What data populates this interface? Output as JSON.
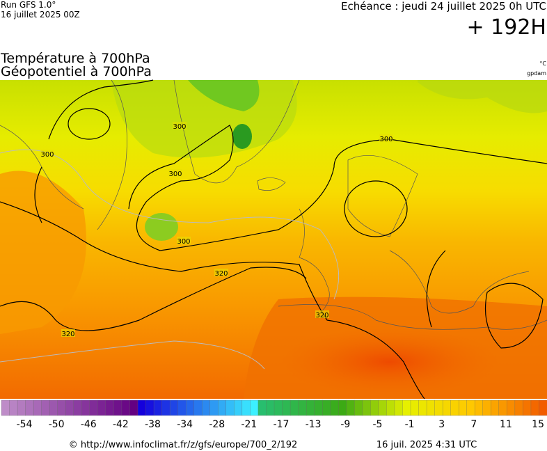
{
  "header": {
    "model": "Run GFS 1.0°",
    "run": "16 juillet 2025 00Z",
    "valid": "Echéance : jeudi 24 juillet 2025 0h UTC",
    "lead": "+ 192H"
  },
  "titles": {
    "line1": "Température à 700hPa",
    "line2": "Géopotentiel à 700hPa",
    "unit1": "°C",
    "unit2": "gpdam"
  },
  "contour_labels": [
    300,
    300,
    300,
    300,
    300,
    320,
    320,
    320
  ],
  "colorbar": {
    "ticks": [
      -54,
      -50,
      -46,
      -42,
      -38,
      -34,
      -28,
      -21,
      -17,
      -13,
      -9,
      -5,
      -1,
      3,
      7,
      11,
      15
    ]
  },
  "footer": {
    "source": "© http://www.infoclimat.fr/z/gfs/europe/700_2/192",
    "generated": "16 juil. 2025  4:31 UTC"
  }
}
